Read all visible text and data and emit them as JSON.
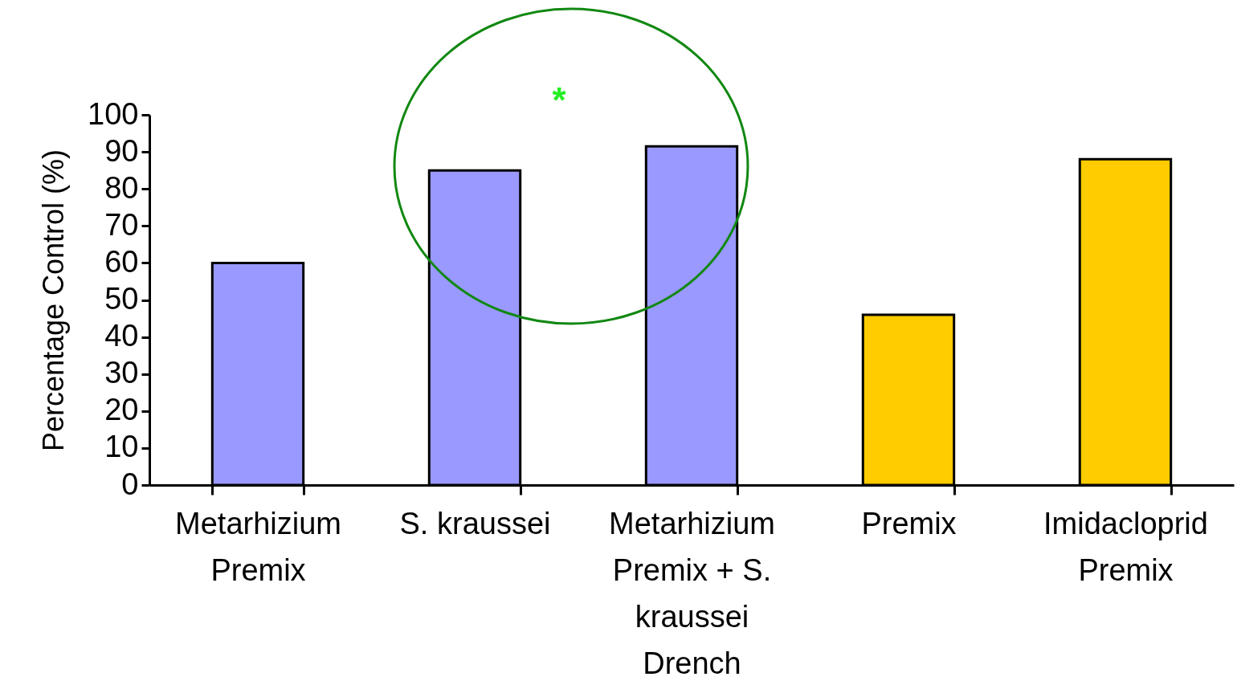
{
  "chart_data": {
    "type": "bar",
    "ylabel": "Percentage Control (%)",
    "categories": [
      "Metarhizium Premix",
      "S. kraussei",
      "Metarhizium Premix + S. kraussei Drench",
      "Premix",
      "Imidacloprid Premix"
    ],
    "values": [
      60,
      85,
      91.5,
      46,
      88
    ],
    "colors": [
      "#9999ff",
      "#9999ff",
      "#9999ff",
      "#ffcc00",
      "#ffcc00"
    ],
    "ylim": [
      0,
      100
    ],
    "yticks": [
      0,
      10,
      20,
      30,
      40,
      50,
      60,
      70,
      80,
      90,
      100
    ],
    "annotations": [
      "*"
    ],
    "grid": false,
    "legend": false
  }
}
